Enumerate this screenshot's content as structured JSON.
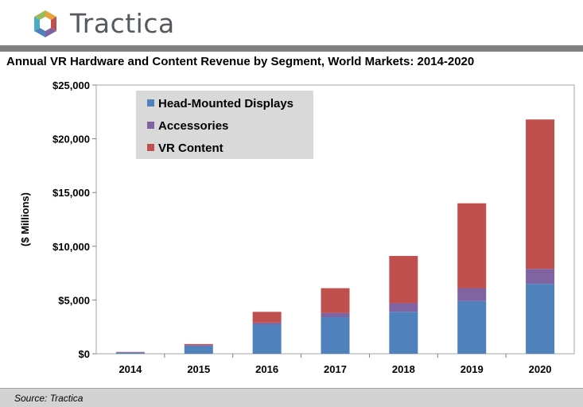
{
  "brand": {
    "name": "Tractica"
  },
  "colors": {
    "head_mounted_displays": "#4f81bd",
    "accessories": "#8064a2",
    "vr_content": "#c0504d",
    "legend_bg": "#d9d9d9",
    "header_bar": "#808080",
    "footer_bg": "#d3d3d3"
  },
  "footer": {
    "source": "Source: Tractica"
  },
  "chart_data": {
    "type": "bar",
    "stacked": true,
    "title": "Annual VR Hardware and Content Revenue by Segment, World Markets: 2014-2020",
    "xlabel": "",
    "ylabel": "($ Millions)",
    "ylim": [
      0,
      25000
    ],
    "yticks": [
      0,
      5000,
      10000,
      15000,
      20000,
      25000
    ],
    "ytick_labels": [
      "$0",
      "$5,000",
      "$10,000",
      "$15,000",
      "$20,000",
      "$25,000"
    ],
    "categories": [
      "2014",
      "2015",
      "2016",
      "2017",
      "2018",
      "2019",
      "2020"
    ],
    "series": [
      {
        "name": "Head-Mounted Displays",
        "color": "#4f81bd",
        "values": [
          100,
          700,
          2700,
          3400,
          3900,
          4900,
          6500
        ]
      },
      {
        "name": "Accessories",
        "color": "#8064a2",
        "values": [
          50,
          100,
          200,
          400,
          800,
          1200,
          1400
        ]
      },
      {
        "name": "VR Content",
        "color": "#c0504d",
        "values": [
          20,
          100,
          1000,
          2300,
          4400,
          7900,
          13900
        ]
      }
    ],
    "legend": "top-left",
    "grid": false
  }
}
